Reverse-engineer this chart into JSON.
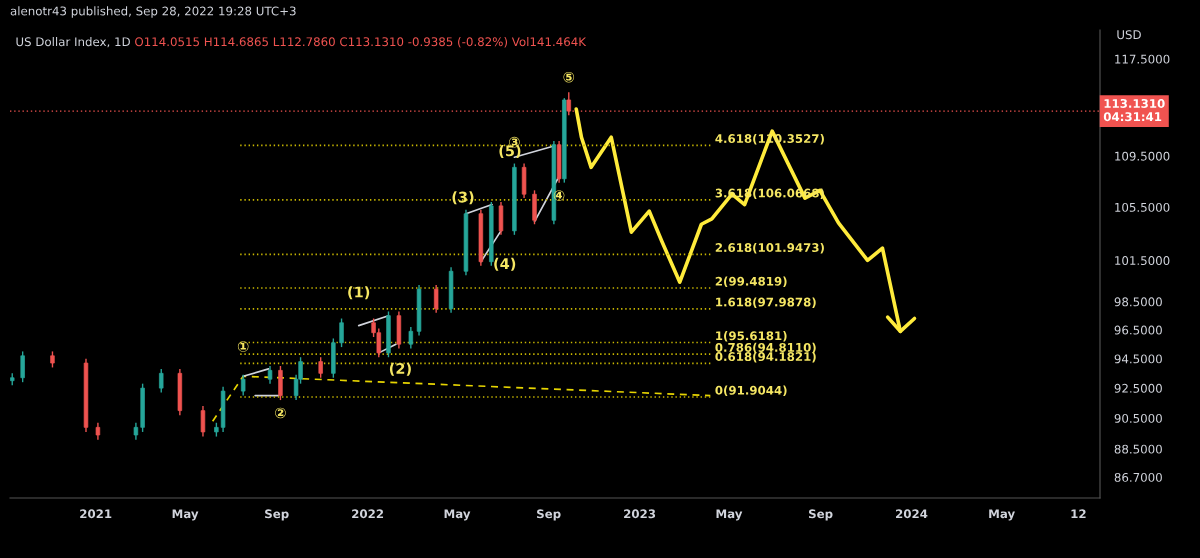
{
  "chart_data": {
    "type": "candlestick",
    "title": "US Dollar Index, 1D",
    "subtitle": "O114.0515 H114.6865 L112.7860 C113.1310 -0.9385 (-0.82%) Vol141.464K",
    "ylabel": "USD",
    "x": [
      "2020-09-11",
      "2020-09-25",
      "2020-11-04",
      "2020-12-19",
      "2021-01-04",
      "2021-02-24",
      "2021-03-05",
      "2021-03-30",
      "2021-04-24",
      "2021-05-25",
      "2021-06-12",
      "2021-06-21",
      "2021-07-18",
      "2021-08-23",
      "2021-09-06",
      "2021-09-27",
      "2021-10-03",
      "2021-10-30",
      "2021-11-16",
      "2021-11-27",
      "2022-01-09",
      "2022-01-16",
      "2022-01-29",
      "2022-02-12",
      "2022-02-28",
      "2022-03-11",
      "2022-04-03",
      "2022-04-23",
      "2022-05-13",
      "2022-06-02",
      "2022-06-16",
      "2022-06-29",
      "2022-07-17",
      "2022-07-30",
      "2022-08-13",
      "2022-09-08",
      "2022-09-15",
      "2022-09-22",
      "2022-09-28"
    ],
    "ohlc": [
      [
        93.0,
        93.5,
        92.7,
        93.2
      ],
      [
        93.2,
        95.0,
        92.9,
        94.7
      ],
      [
        94.7,
        95.0,
        93.9,
        94.2
      ],
      [
        94.2,
        94.5,
        89.6,
        89.9
      ],
      [
        89.9,
        90.2,
        89.1,
        89.4
      ],
      [
        89.4,
        90.2,
        89.1,
        89.9
      ],
      [
        89.9,
        92.8,
        89.6,
        92.5
      ],
      [
        92.5,
        93.8,
        92.2,
        93.5
      ],
      [
        93.5,
        93.8,
        90.7,
        91.0
      ],
      [
        91.0,
        91.3,
        89.3,
        89.6
      ],
      [
        89.6,
        90.2,
        89.3,
        89.9
      ],
      [
        89.9,
        92.6,
        89.6,
        92.3
      ],
      [
        92.3,
        93.4,
        92.0,
        93.1
      ],
      [
        93.1,
        94.0,
        92.8,
        93.7
      ],
      [
        93.7,
        94.0,
        91.7,
        92.0
      ],
      [
        92.0,
        93.4,
        91.7,
        93.1
      ],
      [
        93.1,
        94.6,
        92.8,
        94.3
      ],
      [
        94.3,
        94.6,
        93.2,
        93.5
      ],
      [
        93.5,
        95.9,
        93.2,
        95.6
      ],
      [
        95.6,
        97.3,
        95.3,
        97.0
      ],
      [
        97.0,
        97.3,
        96.0,
        96.3
      ],
      [
        96.3,
        96.6,
        94.6,
        94.9
      ],
      [
        94.9,
        97.8,
        94.6,
        97.5
      ],
      [
        97.5,
        97.8,
        95.2,
        95.5
      ],
      [
        95.5,
        96.7,
        95.2,
        96.4
      ],
      [
        96.4,
        99.7,
        96.1,
        99.4
      ],
      [
        99.4,
        99.7,
        97.7,
        98.0
      ],
      [
        98.0,
        101.0,
        97.7,
        100.7
      ],
      [
        100.7,
        105.3,
        100.4,
        105.0
      ],
      [
        105.0,
        105.3,
        101.1,
        101.4
      ],
      [
        101.4,
        105.9,
        101.1,
        105.6
      ],
      [
        105.6,
        105.9,
        103.4,
        103.7
      ],
      [
        103.7,
        108.9,
        103.4,
        108.6
      ],
      [
        108.6,
        108.9,
        106.2,
        106.5
      ],
      [
        106.5,
        106.8,
        104.2,
        104.5
      ],
      [
        104.5,
        110.7,
        104.2,
        110.4
      ],
      [
        110.4,
        110.7,
        107.4,
        107.7
      ],
      [
        107.7,
        114.2,
        107.4,
        114.05
      ],
      [
        114.0515,
        114.6865,
        112.786,
        113.131
      ]
    ],
    "colors": [
      "#26a69a",
      "#26a69a",
      "#ef5350",
      "#ef5350",
      "#ef5350",
      "#26a69a",
      "#26a69a",
      "#26a69a",
      "#ef5350",
      "#ef5350",
      "#26a69a",
      "#26a69a",
      "#26a69a",
      "#26a69a",
      "#ef5350",
      "#26a69a",
      "#26a69a",
      "#ef5350",
      "#26a69a",
      "#26a69a",
      "#ef5350",
      "#ef5350",
      "#26a69a",
      "#ef5350",
      "#26a69a",
      "#26a69a",
      "#ef5350",
      "#26a69a",
      "#26a69a",
      "#ef5350",
      "#26a69a",
      "#ef5350",
      "#26a69a",
      "#ef5350",
      "#ef5350",
      "#26a69a",
      "#ef5350",
      "#26a69a",
      "#ef5350"
    ],
    "series": [
      {
        "type": "line",
        "color": "#ffeb3b",
        "line_style": "solid",
        "x": [
          "2022-10-08",
          "2022-10-15",
          "2022-10-28",
          "2022-11-24",
          "2022-12-21",
          "2023-01-14",
          "2023-01-31",
          "2023-02-24",
          "2023-03-25",
          "2023-04-08",
          "2023-05-05",
          "2023-05-22",
          "2023-06-28",
          "2023-08-11",
          "2023-08-31",
          "2023-09-25",
          "2023-11-03",
          "2023-11-23",
          "2023-12-17"
        ],
        "values": [
          113.3,
          111.0,
          108.6,
          111.0,
          103.6,
          105.2,
          102.9,
          99.9,
          104.2,
          104.6,
          106.5,
          105.7,
          111.5,
          106.2,
          106.8,
          104.3,
          101.5,
          102.4,
          96.4
        ]
      },
      {
        "type": "line",
        "color": "#ffeb3b",
        "line_style": "solid",
        "x": [
          "2023-11-30",
          "2023-12-17",
          "2024-01-05"
        ],
        "values": [
          97.4,
          96.4,
          97.3
        ]
      },
      {
        "type": "line",
        "color": "#e6d400",
        "line_style": "dashed",
        "x": [
          "2021-06-07",
          "2021-07-18",
          "2023-04-06"
        ],
        "values": [
          90.3,
          93.3,
          92.0
        ]
      },
      {
        "type": "line",
        "color": "#d1d4dc",
        "line_style": "solid",
        "x": [
          "2021-07-18",
          "2021-08-21"
        ],
        "values": [
          93.3,
          93.8
        ]
      },
      {
        "type": "line",
        "color": "#d1d4dc",
        "line_style": "solid",
        "x": [
          "2021-08-03",
          "2021-09-04"
        ],
        "values": [
          92.0,
          92.0
        ]
      },
      {
        "type": "line",
        "color": "#d1d4dc",
        "line_style": "solid",
        "x": [
          "2021-12-20",
          "2022-01-29"
        ],
        "values": [
          96.8,
          97.5
        ]
      },
      {
        "type": "line",
        "color": "#d1d4dc",
        "line_style": "solid",
        "x": [
          "2022-01-16",
          "2022-02-08"
        ],
        "values": [
          94.9,
          95.5
        ]
      },
      {
        "type": "line",
        "color": "#d1d4dc",
        "line_style": "solid",
        "x": [
          "2022-05-13",
          "2022-06-17"
        ],
        "values": [
          105.0,
          105.7
        ]
      },
      {
        "type": "line",
        "color": "#d1d4dc",
        "line_style": "solid",
        "x": [
          "2022-06-02",
          "2022-06-29"
        ],
        "values": [
          101.4,
          103.7
        ]
      },
      {
        "type": "line",
        "color": "#d1d4dc",
        "line_style": "solid",
        "x": [
          "2022-07-17",
          "2022-09-08"
        ],
        "values": [
          109.4,
          110.3
        ]
      },
      {
        "type": "line",
        "color": "#d1d4dc",
        "line_style": "solid",
        "x": [
          "2022-08-13",
          "2022-09-15"
        ],
        "values": [
          104.4,
          107.9
        ]
      },
      {
        "type": "line",
        "name": "4.618(110.3527)",
        "color": "#c9b800",
        "line_style": "dotted",
        "x": [
          "2021-07-14",
          "2023-04-06"
        ],
        "values": [
          110.3527,
          110.3527
        ]
      },
      {
        "type": "line",
        "name": "3.618(106.0668)",
        "color": "#c9b800",
        "line_style": "dotted",
        "x": [
          "2021-07-14",
          "2023-04-06"
        ],
        "values": [
          106.0668,
          106.0668
        ]
      },
      {
        "type": "line",
        "name": "2.618(101.9473)",
        "color": "#c9b800",
        "line_style": "dotted",
        "x": [
          "2021-07-14",
          "2023-04-06"
        ],
        "values": [
          101.9473,
          101.9473
        ]
      },
      {
        "type": "line",
        "name": "2(99.4819)",
        "color": "#c9b800",
        "line_style": "dotted",
        "x": [
          "2021-07-14",
          "2023-04-06"
        ],
        "values": [
          99.4819,
          99.4819
        ]
      },
      {
        "type": "line",
        "name": "1.618(97.9878)",
        "color": "#c9b800",
        "line_style": "dotted",
        "x": [
          "2021-07-14",
          "2023-04-06"
        ],
        "values": [
          97.9878,
          97.9878
        ]
      },
      {
        "type": "line",
        "name": "1(95.6181)",
        "color": "#c9b800",
        "line_style": "dotted",
        "x": [
          "2021-07-14",
          "2023-04-06"
        ],
        "values": [
          95.6181,
          95.6181
        ]
      },
      {
        "type": "line",
        "name": "0.786(94.8110)",
        "color": "#c9b800",
        "line_style": "dotted",
        "x": [
          "2021-07-14",
          "2023-04-06"
        ],
        "values": [
          94.811,
          94.811
        ]
      },
      {
        "type": "line",
        "name": "0.618(94.1821)",
        "color": "#c9b800",
        "line_style": "dotted",
        "x": [
          "2021-07-14",
          "2023-04-06"
        ],
        "values": [
          94.1821,
          94.1821
        ]
      },
      {
        "type": "line",
        "name": "0(91.9044)",
        "color": "#c9b800",
        "line_style": "dotted",
        "x": [
          "2021-07-14",
          "2023-04-06"
        ],
        "values": [
          91.9044,
          91.9044
        ]
      }
    ],
    "ref_lines": [
      {
        "axis": "y",
        "value": 113.131,
        "label": "113.1310\n04:31:41",
        "color": "#f05350",
        "line_style": "dotted"
      }
    ],
    "annotations": [
      "alenotr43 published, Sep 28, 2022 19:28 UTC+3",
      {
        "text": "①",
        "x": "2021-07-18",
        "y": 94.3
      },
      {
        "text": "②",
        "x": "2021-09-06",
        "y": 91.7
      },
      {
        "text": "(1)",
        "x": "2021-12-20",
        "y": 98.1
      },
      {
        "text": "(2)",
        "x": "2022-02-14",
        "y": 94.7
      },
      {
        "text": "(3)",
        "x": "2022-05-09",
        "y": 105.1
      },
      {
        "text": "(4)",
        "x": "2022-07-04",
        "y": 102.2
      },
      {
        "text": "(5)",
        "x": "2022-07-11",
        "y": 108.7
      },
      {
        "text": "③",
        "x": "2022-07-17",
        "y": 109.4
      },
      {
        "text": "④",
        "x": "2022-09-15",
        "y": 107.4
      },
      {
        "text": "⑤",
        "x": "2022-09-28",
        "y": 114.6865
      }
    ],
    "log": true,
    "grid": false,
    "legend": false,
    "xlim": [
      "2020-09-08",
      "2024-09-10"
    ],
    "ylim": [
      85.4,
      120.0
    ],
    "xticks": [
      {
        "value": "2021-01-01",
        "label": "2021"
      },
      {
        "value": "2021-05-01",
        "label": "May"
      },
      {
        "value": "2021-09-01",
        "label": "Sep"
      },
      {
        "value": "2022-01-01",
        "label": "2022"
      },
      {
        "value": "2022-05-01",
        "label": "May"
      },
      {
        "value": "2022-09-01",
        "label": "Sep"
      },
      {
        "value": "2023-01-01",
        "label": "2023"
      },
      {
        "value": "2023-05-01",
        "label": "May"
      },
      {
        "value": "2023-09-01",
        "label": "Sep"
      },
      {
        "value": "2024-01-01",
        "label": "2024"
      },
      {
        "value": "2024-05-01",
        "label": "May"
      },
      {
        "value": "2024-08-12",
        "label": "12"
      }
    ],
    "yticks": [
      {
        "value": 86.7,
        "label": "86.7000"
      },
      {
        "value": 88.5,
        "label": "88.5000"
      },
      {
        "value": 90.5,
        "label": "90.5000"
      },
      {
        "value": 92.5,
        "label": "92.5000"
      },
      {
        "value": 94.5,
        "label": "94.5000"
      },
      {
        "value": 96.5,
        "label": "96.5000"
      },
      {
        "value": 98.5,
        "label": "98.5000"
      },
      {
        "value": 101.5,
        "label": "101.5000"
      },
      {
        "value": 105.5,
        "label": "105.5000"
      },
      {
        "value": 109.5,
        "label": "109.5000"
      },
      {
        "value": 117.5,
        "label": "117.5000"
      }
    ]
  }
}
